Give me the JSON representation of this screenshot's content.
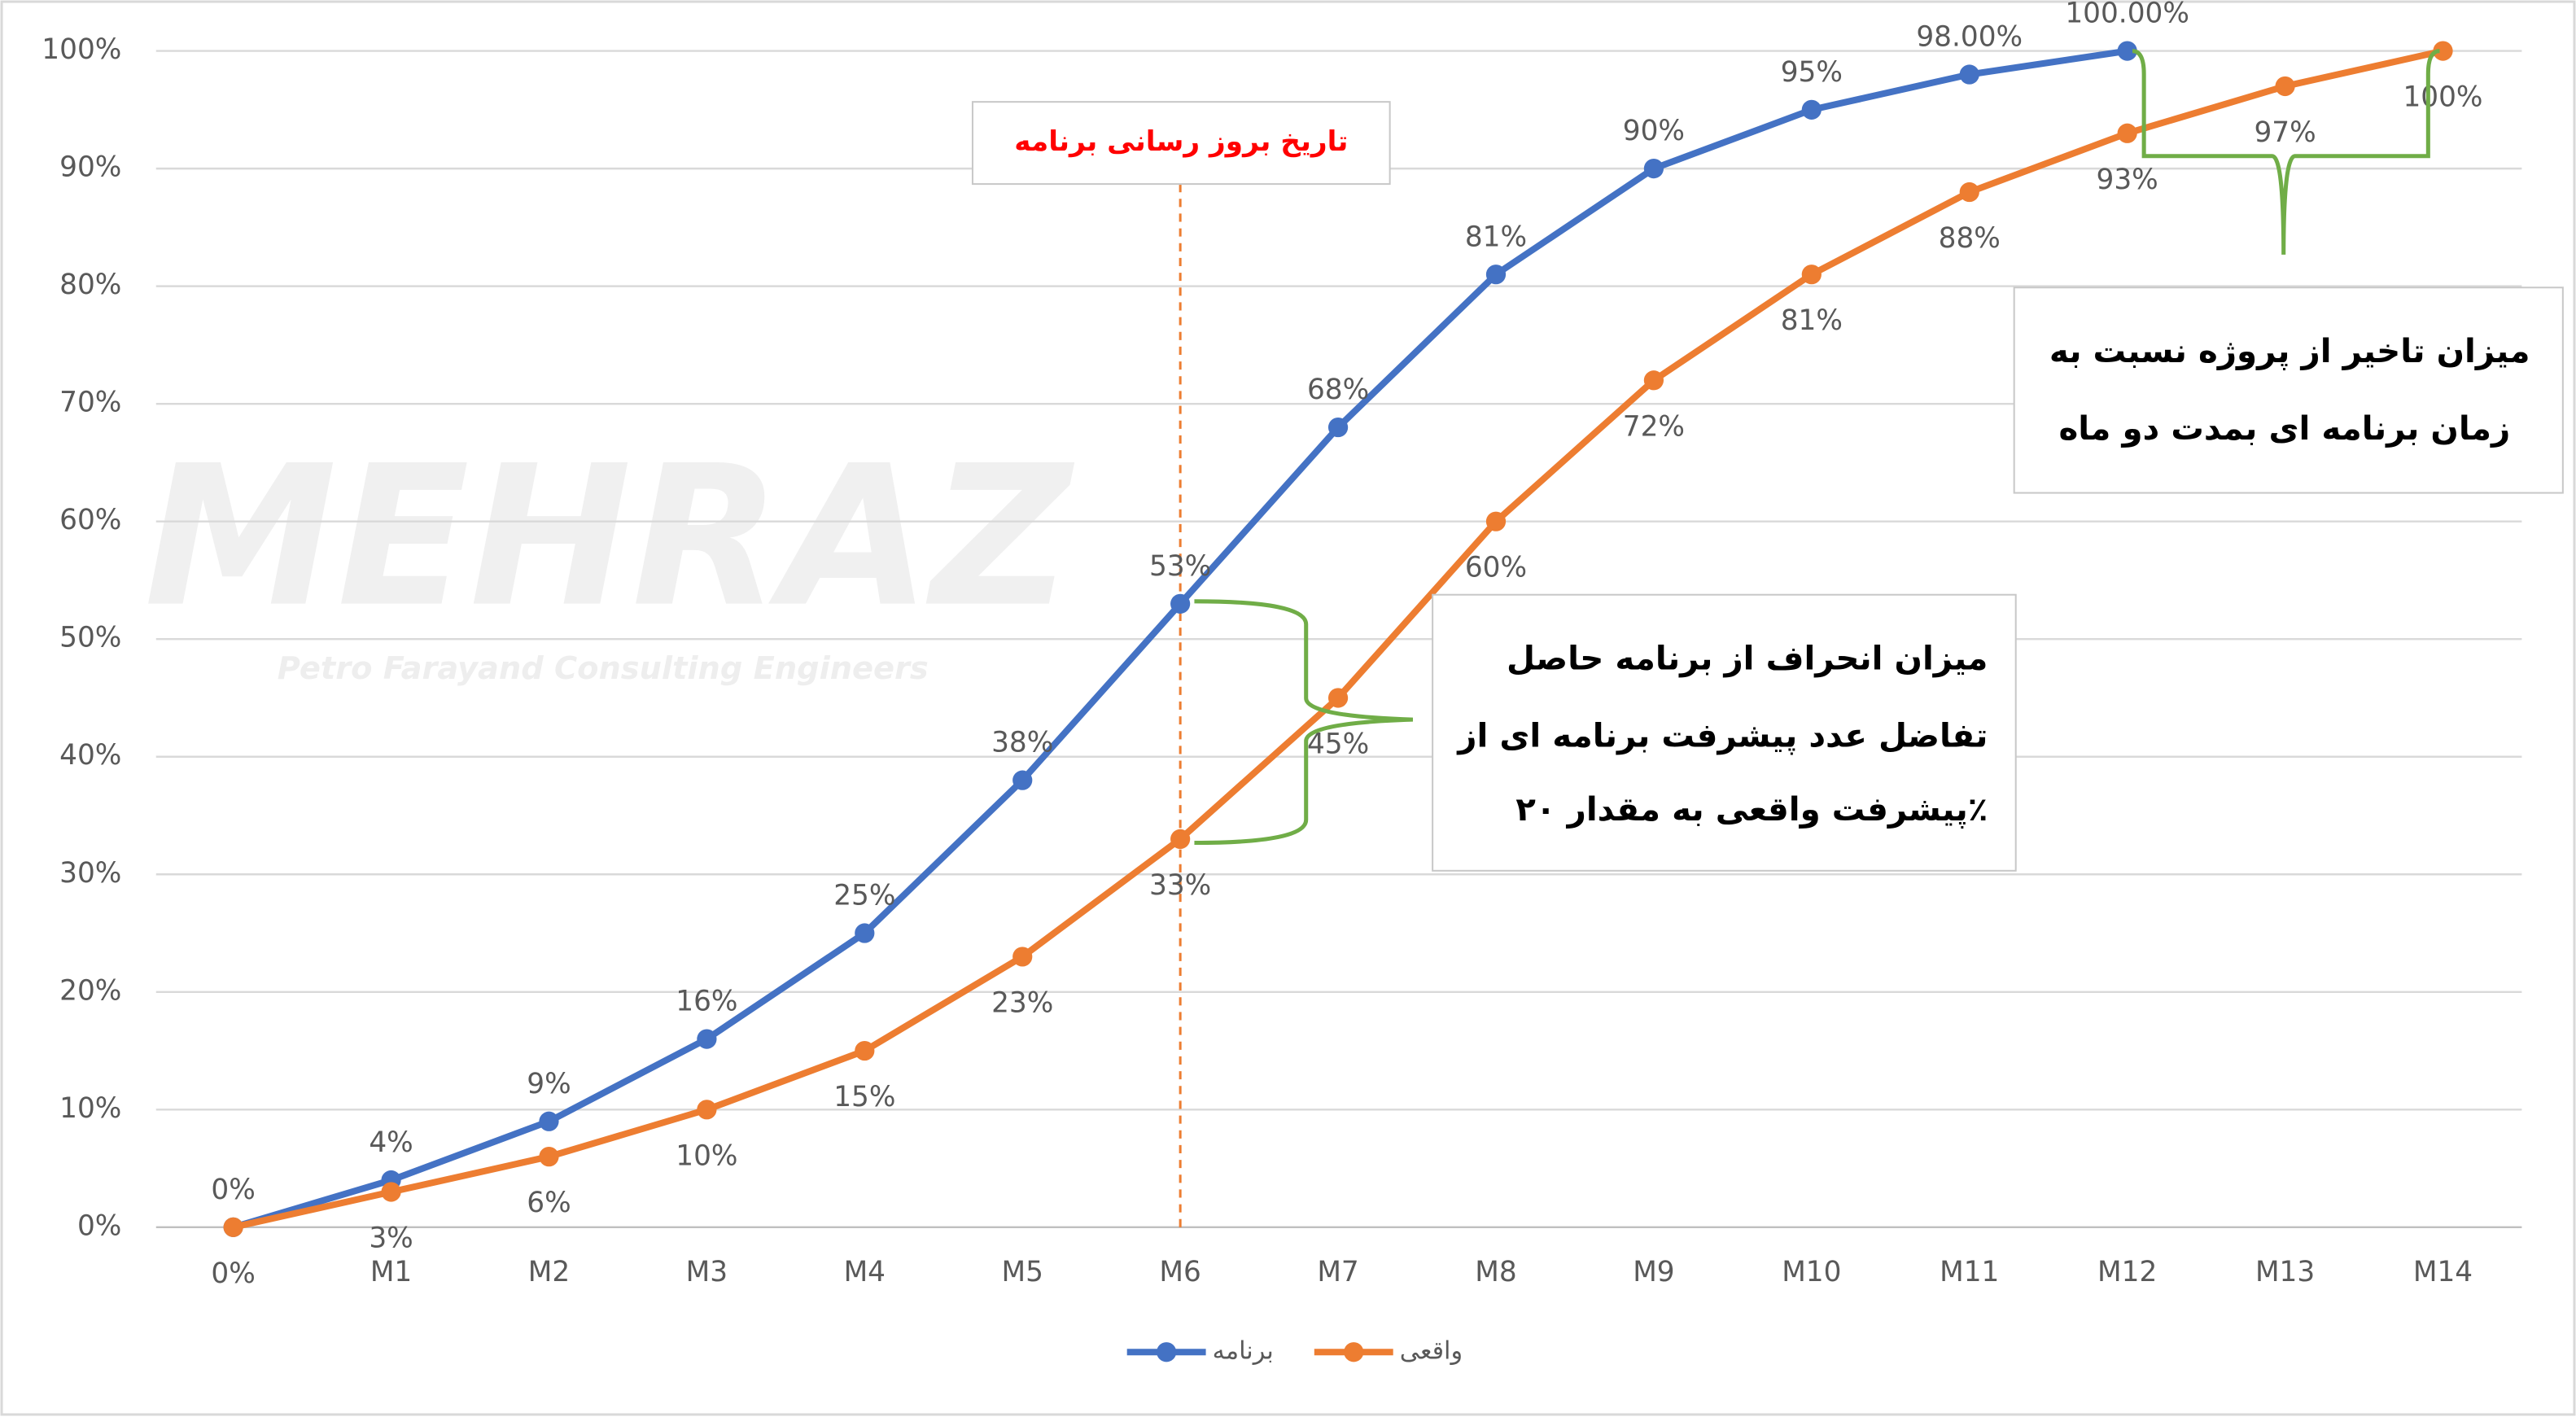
{
  "chart_data": {
    "type": "line",
    "categories": [
      null,
      "M1",
      "M2",
      "M3",
      "M4",
      "M5",
      "M6",
      "M7",
      "M8",
      "M9",
      "M10",
      "M11",
      "M12",
      "M13",
      "M14"
    ],
    "series": [
      {
        "name": "برنامه",
        "color": "#4472c4",
        "values": [
          0,
          4,
          9,
          16,
          25,
          38,
          53,
          68,
          81,
          90,
          95,
          98,
          100,
          null,
          null
        ],
        "value_labels": [
          "0%",
          "4%",
          "9%",
          "16%",
          "25%",
          "38%",
          "53%",
          "68%",
          "81%",
          "90%",
          "95%",
          "98.00%",
          "100.00%",
          null,
          null
        ]
      },
      {
        "name": "واقعی",
        "color": "#ed7d31",
        "values": [
          0,
          3,
          6,
          10,
          15,
          23,
          33,
          45,
          60,
          72,
          81,
          88,
          93,
          97,
          100
        ],
        "value_labels": [
          "0%",
          "3%",
          "6%",
          "10%",
          "15%",
          "23%",
          "33%",
          "45%",
          "60%",
          "72%",
          "81%",
          "88%",
          "93%",
          "97%",
          "100%"
        ]
      }
    ],
    "ylim": [
      0,
      100
    ],
    "yticks": [
      {
        "value": 0,
        "label": "0%"
      },
      {
        "value": 10,
        "label": "10%"
      },
      {
        "value": 20,
        "label": "20%"
      },
      {
        "value": 30,
        "label": "30%"
      },
      {
        "value": 40,
        "label": "40%"
      },
      {
        "value": 50,
        "label": "50%"
      },
      {
        "value": 60,
        "label": "60%"
      },
      {
        "value": 70,
        "label": "70%"
      },
      {
        "value": 80,
        "label": "80%"
      },
      {
        "value": 90,
        "label": "90%"
      },
      {
        "value": 100,
        "label": "100%"
      }
    ],
    "grid": true,
    "legend": "bottom",
    "update_line": {
      "label": "تاریخ بروز رسانی برنامه",
      "category": "M6",
      "color": "#ff0000"
    },
    "deviation_note": [
      "میزان انحراف از برنامه حاصل",
      "تفاضل عدد پیشرفت برنامه ای از",
      "پیشرفت واقعی به مقدار ۲۰٪"
    ],
    "delay_note": [
      "میزان تاخیر از پروژه نسبت به",
      "زمان برنامه ای بمدت دو ماه"
    ],
    "watermark": {
      "title": "MEHRAZ",
      "subtitle": "Petro Farayand Consulting Engineers"
    }
  }
}
